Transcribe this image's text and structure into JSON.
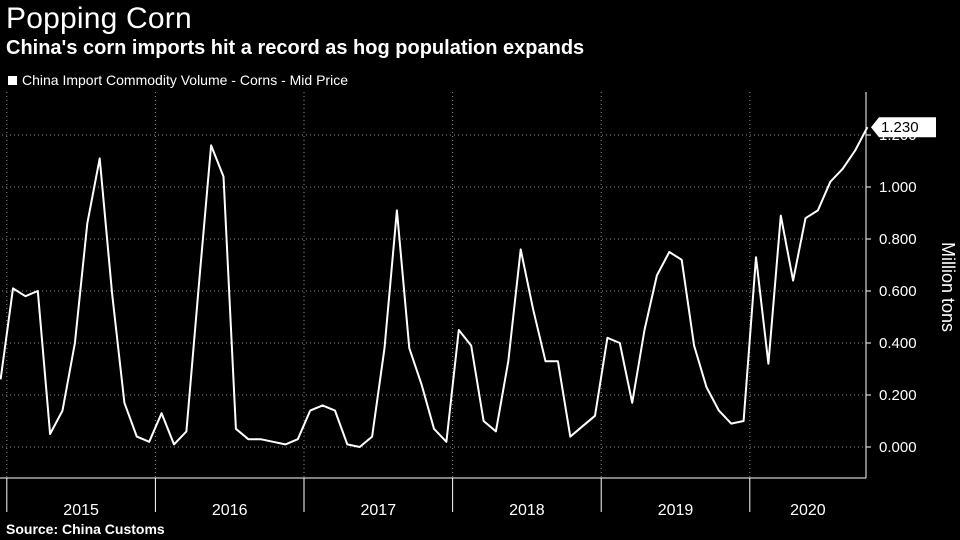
{
  "header": {
    "title": "Popping Corn",
    "subtitle": "China's corn imports hit a record as hog population expands"
  },
  "legend": {
    "label": "China Import Commodity Volume - Corns - Mid Price"
  },
  "source": "Source: China Customs",
  "colors": {
    "background": "#000000",
    "line": "#ffffff",
    "grid": "#8c8c8c"
  },
  "chart_data": {
    "type": "line",
    "title": "Popping Corn",
    "subtitle": "China's corn imports hit a record as hog population expands",
    "ylabel": "Million tons",
    "ylim": [
      -0.1,
      1.35
    ],
    "yticks": [
      "0.000",
      "0.200",
      "0.400",
      "0.600",
      "0.800",
      "1.000",
      "1.200"
    ],
    "year_labels": [
      "2015",
      "2016",
      "2017",
      "2018",
      "2019",
      "2020"
    ],
    "last_value_label": "1.230",
    "grid": true,
    "legend_position": "top-left",
    "x_start": "2014-12",
    "x_end": "2020-07",
    "series": [
      {
        "name": "China Import Commodity Volume - Corns - Mid Price",
        "values": [
          0.26,
          0.61,
          0.58,
          0.6,
          0.05,
          0.14,
          0.4,
          0.86,
          1.11,
          0.59,
          0.17,
          0.04,
          0.02,
          0.13,
          0.01,
          0.06,
          0.62,
          1.16,
          1.04,
          0.07,
          0.03,
          0.03,
          0.02,
          0.01,
          0.03,
          0.14,
          0.16,
          0.14,
          0.01,
          0.0,
          0.04,
          0.38,
          0.91,
          0.38,
          0.24,
          0.07,
          0.02,
          0.45,
          0.39,
          0.1,
          0.06,
          0.33,
          0.76,
          0.53,
          0.33,
          0.33,
          0.04,
          0.08,
          0.12,
          0.42,
          0.4,
          0.17,
          0.45,
          0.66,
          0.75,
          0.72,
          0.39,
          0.23,
          0.14,
          0.09,
          0.1,
          0.73,
          0.32,
          0.89,
          0.64,
          0.88,
          0.91,
          1.02,
          1.07,
          1.14,
          1.23
        ]
      }
    ]
  }
}
